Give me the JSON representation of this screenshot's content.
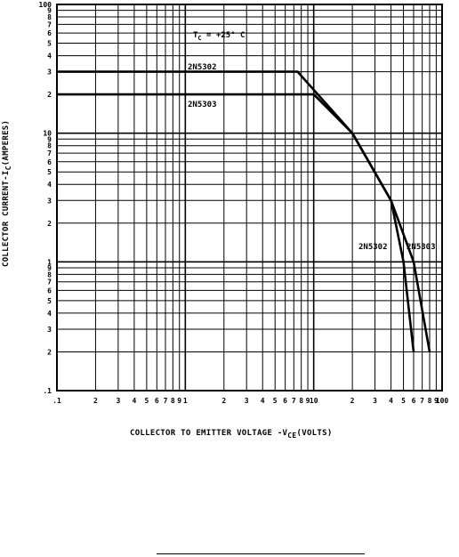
{
  "chart_data": {
    "type": "line",
    "xscale": "log",
    "yscale": "log",
    "xlim": [
      0.1,
      100
    ],
    "ylim": [
      0.1,
      100
    ],
    "grid": true,
    "xlabel_prefix": "COLLECTOR TO EMITTER VOLTAGE -V",
    "xlabel_sub": "CE",
    "xlabel_suffix": "(VOLTS)",
    "ylabel_prefix": "COLLECTOR CURRENT-I",
    "ylabel_sub": "C",
    "ylabel_suffix": "(AMPERES)",
    "annotation": {
      "prefix": "T",
      "sub": "C",
      "suffix": " = +25° C"
    },
    "x_ticks": [
      {
        "v": 0.1,
        "t": ".1"
      },
      {
        "v": 0.2,
        "t": "2"
      },
      {
        "v": 0.3,
        "t": "3"
      },
      {
        "v": 0.4,
        "t": "4"
      },
      {
        "v": 0.5,
        "t": "5"
      },
      {
        "v": 0.6,
        "t": "6"
      },
      {
        "v": 0.7,
        "t": "7"
      },
      {
        "v": 0.8,
        "t": "8"
      },
      {
        "v": 0.9,
        "t": "9"
      },
      {
        "v": 1,
        "t": "1"
      },
      {
        "v": 2,
        "t": "2"
      },
      {
        "v": 3,
        "t": "3"
      },
      {
        "v": 4,
        "t": "4"
      },
      {
        "v": 5,
        "t": "5"
      },
      {
        "v": 6,
        "t": "6"
      },
      {
        "v": 7,
        "t": "7"
      },
      {
        "v": 8,
        "t": "8"
      },
      {
        "v": 9,
        "t": "9"
      },
      {
        "v": 10,
        "t": "10"
      },
      {
        "v": 20,
        "t": "2"
      },
      {
        "v": 30,
        "t": "3"
      },
      {
        "v": 40,
        "t": "4"
      },
      {
        "v": 50,
        "t": "5"
      },
      {
        "v": 60,
        "t": "6"
      },
      {
        "v": 70,
        "t": "7"
      },
      {
        "v": 80,
        "t": "8"
      },
      {
        "v": 90,
        "t": "9"
      },
      {
        "v": 100,
        "t": "100"
      }
    ],
    "y_ticks": [
      {
        "v": 0.1,
        "t": ".1"
      },
      {
        "v": 0.2,
        "t": "2"
      },
      {
        "v": 0.3,
        "t": "3"
      },
      {
        "v": 0.4,
        "t": "4"
      },
      {
        "v": 0.5,
        "t": "5"
      },
      {
        "v": 0.6,
        "t": "6"
      },
      {
        "v": 0.7,
        "t": "7"
      },
      {
        "v": 0.8,
        "t": "8"
      },
      {
        "v": 0.9,
        "t": "9"
      },
      {
        "v": 1,
        "t": "1"
      },
      {
        "v": 2,
        "t": "2"
      },
      {
        "v": 3,
        "t": "3"
      },
      {
        "v": 4,
        "t": "4"
      },
      {
        "v": 5,
        "t": "5"
      },
      {
        "v": 6,
        "t": "6"
      },
      {
        "v": 7,
        "t": "7"
      },
      {
        "v": 8,
        "t": "8"
      },
      {
        "v": 9,
        "t": "9"
      },
      {
        "v": 10,
        "t": "10"
      },
      {
        "v": 20,
        "t": "2"
      },
      {
        "v": 30,
        "t": "3"
      },
      {
        "v": 40,
        "t": "4"
      },
      {
        "v": 50,
        "t": "5"
      },
      {
        "v": 60,
        "t": "6"
      },
      {
        "v": 70,
        "t": "7"
      },
      {
        "v": 80,
        "t": "8"
      },
      {
        "v": 90,
        "t": "9"
      },
      {
        "v": 100,
        "t": "100"
      }
    ],
    "series": [
      {
        "name": "2N5302",
        "points": [
          {
            "x": 0.1,
            "y": 30
          },
          {
            "x": 7.5,
            "y": 30
          },
          {
            "x": 20,
            "y": 10
          },
          {
            "x": 40,
            "y": 3
          },
          {
            "x": 50,
            "y": 1
          },
          {
            "x": 60,
            "y": 0.2
          }
        ]
      },
      {
        "name": "2N5303",
        "points": [
          {
            "x": 0.1,
            "y": 20
          },
          {
            "x": 10,
            "y": 20
          },
          {
            "x": 20,
            "y": 10
          },
          {
            "x": 40,
            "y": 3
          },
          {
            "x": 60,
            "y": 1
          },
          {
            "x": 80,
            "y": 0.2
          }
        ]
      }
    ]
  }
}
